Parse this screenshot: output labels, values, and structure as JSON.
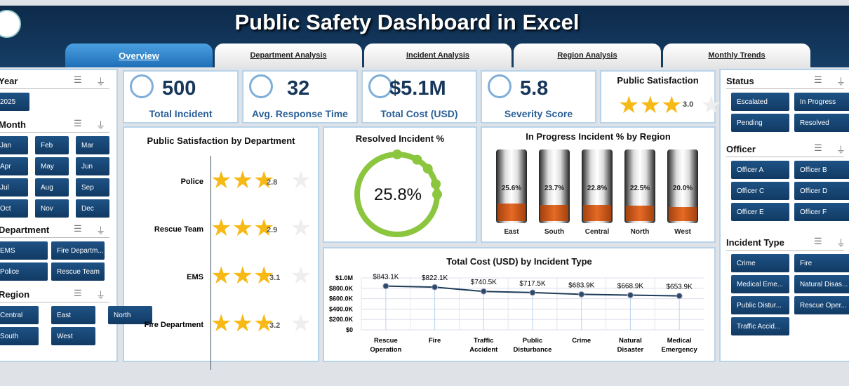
{
  "header": {
    "title": "Public Safety Dashboard in Excel"
  },
  "tabs": [
    "Overview",
    "Department Analysis",
    "Incident Analysis",
    "Region Analysis",
    "Monthly Trends"
  ],
  "kpis": [
    {
      "value": "500",
      "label": "Total Incident",
      "icon": "gear-warning-icon"
    },
    {
      "value": "32",
      "label": "Avg. Response Time",
      "icon": "stopwatch-icon"
    },
    {
      "value": "$5.1M",
      "label": "Total Cost (USD)",
      "icon": "money-bag-hand-icon"
    },
    {
      "value": "5.8",
      "label": "Severity Score",
      "icon": "gauge-icon"
    }
  ],
  "satisfaction": {
    "title": "Public Satisfaction",
    "value": "3.0",
    "rating": 3.0
  },
  "left_slicers": {
    "year": {
      "title": "Year",
      "items": [
        "2025"
      ]
    },
    "month": {
      "title": "Month",
      "items": [
        "Jan",
        "Feb",
        "Mar",
        "Apr",
        "May",
        "Jun",
        "Jul",
        "Aug",
        "Sep",
        "Oct",
        "Nov",
        "Dec"
      ]
    },
    "department": {
      "title": "Department",
      "items": [
        "EMS",
        "Fire Departm...",
        "Police",
        "Rescue Team"
      ]
    },
    "region": {
      "title": "Region",
      "items": [
        "Central",
        "East",
        "North",
        "South",
        "West"
      ]
    }
  },
  "right_slicers": {
    "status": {
      "title": "Status",
      "items": [
        "Escalated",
        "In Progress",
        "Pending",
        "Resolved"
      ]
    },
    "officer": {
      "title": "Officer",
      "items": [
        "Officer A",
        "Officer B",
        "Officer C",
        "Officer D",
        "Officer E",
        "Officer F"
      ]
    },
    "incident_type": {
      "title": "Incident Type",
      "items": [
        "Crime",
        "Fire",
        "Medical Eme...",
        "Natural Disas...",
        "Public Distur...",
        "Rescue Oper...",
        "Traffic Accid..."
      ]
    }
  },
  "chart_data": [
    {
      "type": "bar",
      "title": "Public Satisfaction by Department",
      "categories": [
        "Police",
        "Rescue Team",
        "EMS",
        "Fire Department"
      ],
      "values": [
        2.8,
        2.9,
        3.1,
        3.2
      ],
      "labels": [
        "2.8",
        "2.9",
        "3.1",
        "3.2"
      ],
      "max": 5
    },
    {
      "type": "pie",
      "title": "Resolved Incident %",
      "value": 25.8,
      "label": "25.8%",
      "color": "#8cc63f"
    },
    {
      "type": "bar",
      "title": "In Progress Incident % by Region",
      "categories": [
        "East",
        "South",
        "Central",
        "North",
        "West"
      ],
      "values": [
        25.6,
        23.7,
        22.8,
        22.5,
        20.0
      ],
      "labels": [
        "25.6%",
        "23.7%",
        "22.8%",
        "22.5%",
        "20.0%"
      ],
      "ylim": [
        0,
        100
      ],
      "color": "#e66a25"
    },
    {
      "type": "line",
      "title": "Total Cost (USD) by Incident Type",
      "categories": [
        "Rescue Operation",
        "Fire",
        "Traffic Accident",
        "Public Disturbance",
        "Crime",
        "Natural Disaster",
        "Medical Emergency"
      ],
      "values": [
        843100,
        822100,
        740500,
        717500,
        683900,
        668900,
        653900
      ],
      "labels": [
        "$843.1K",
        "$822.1K",
        "$740.5K",
        "$717.5K",
        "$683.9K",
        "$668.9K",
        "$653.9K"
      ],
      "ylim": [
        0,
        1000000
      ],
      "yticks": [
        "$0",
        "$200.0K",
        "$400.0K",
        "$600.0K",
        "$800.0K",
        "$1.0M"
      ],
      "grid": true
    }
  ]
}
